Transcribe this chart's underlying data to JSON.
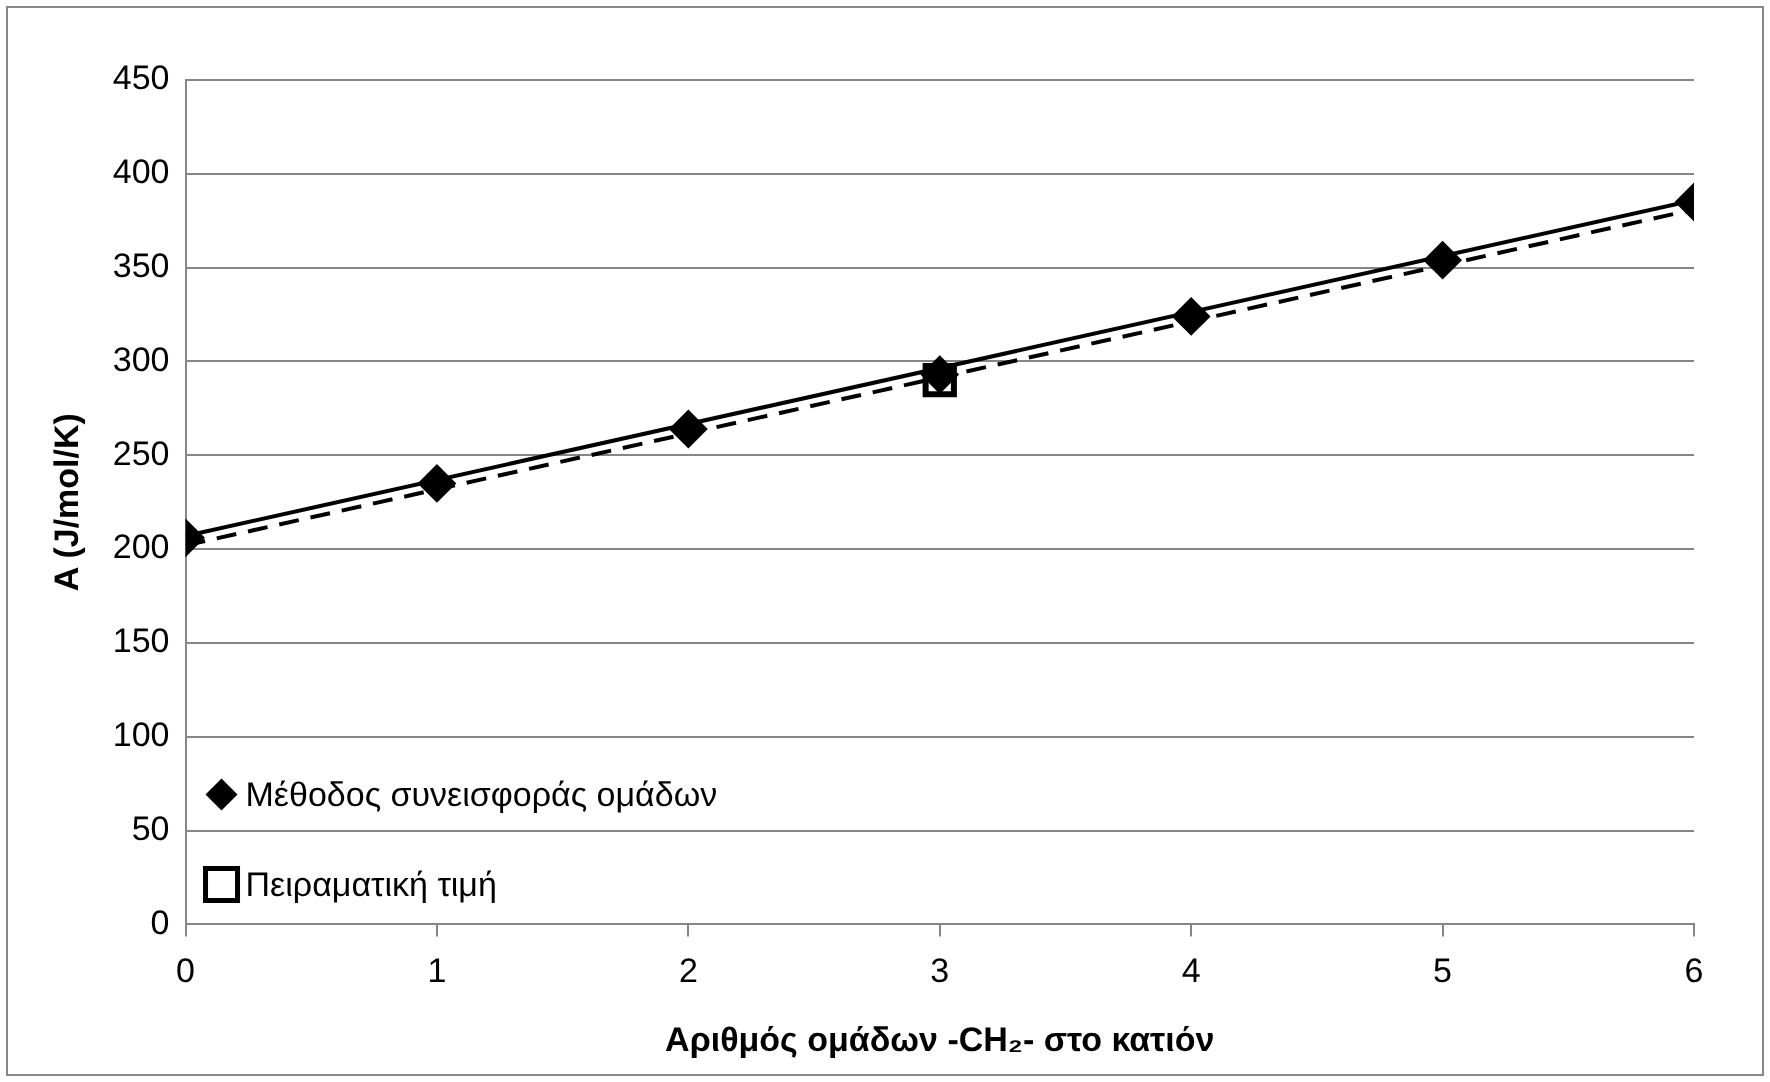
{
  "chart_data": {
    "type": "scatter",
    "xlabel": "Αριθμός ομάδων -CH₂- στο κατιόν",
    "ylabel": "A (J/mol/K)",
    "xlim": [
      0,
      6
    ],
    "xticks": [
      0,
      1,
      2,
      3,
      4,
      5,
      6
    ],
    "ylim": [
      0,
      450
    ],
    "yticks": [
      0,
      50,
      100,
      150,
      200,
      250,
      300,
      350,
      400,
      450
    ],
    "grid": "y",
    "legend": "bottom left",
    "series": [
      {
        "name": "Μέθοδος συνεισφοράς ομάδων",
        "type": "scatter",
        "marker": "diamond",
        "color": "#000000",
        "x": [
          0,
          1,
          2,
          3,
          4,
          5,
          6
        ],
        "values": [
          206,
          235,
          264,
          293,
          324,
          354,
          385
        ]
      },
      {
        "name": "Πειραματική τιμή",
        "type": "scatter",
        "marker": "square",
        "color": "#000000",
        "x": [
          3
        ],
        "values": [
          290
        ]
      },
      {
        "type": "line",
        "marker": "none",
        "line_style": "solid",
        "color": "#000000",
        "x": [
          0,
          6
        ],
        "values": [
          207,
          386
        ]
      },
      {
        "type": "line",
        "marker": "none",
        "line_style": "dashed",
        "color": "#000000",
        "x": [
          0,
          6
        ],
        "values": [
          202,
          381
        ]
      }
    ]
  }
}
